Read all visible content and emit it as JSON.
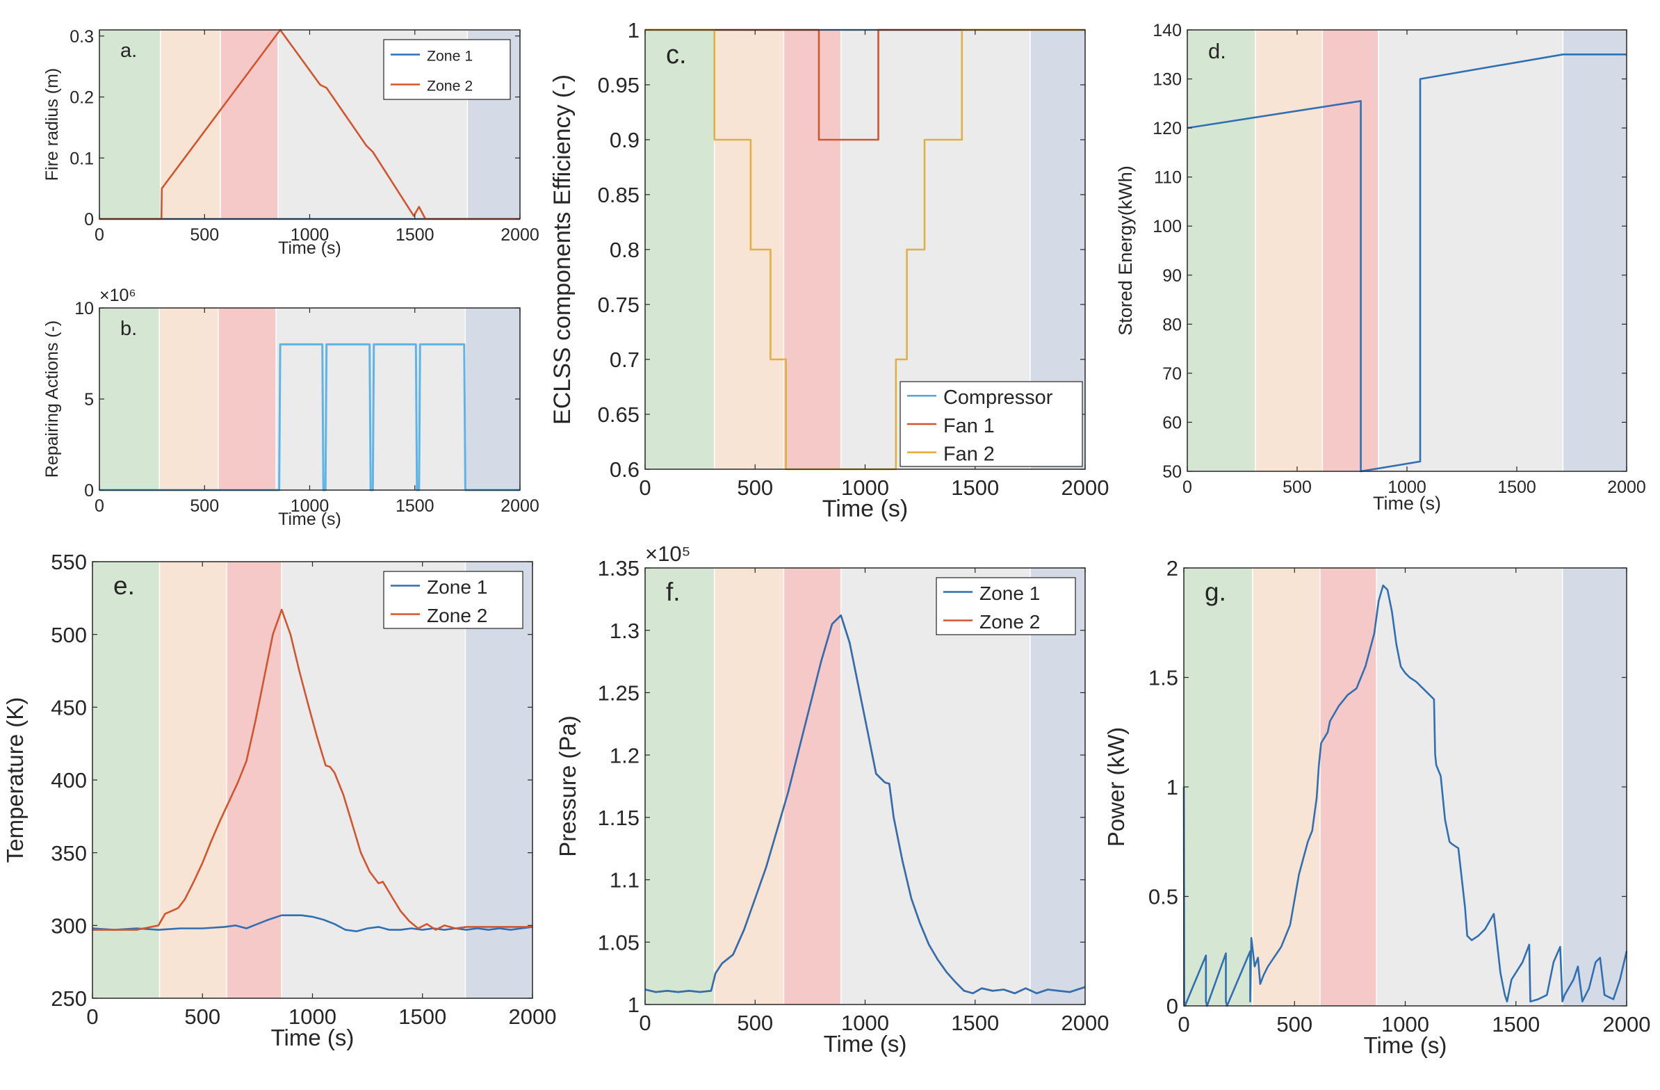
{
  "figure": {
    "phase_colors": [
      "#d5e7d3",
      "#f8e4d4",
      "#f6c9c9",
      "#ebebeb",
      "#d5dbe6"
    ],
    "colors": {
      "zone1": "#2f6fb2",
      "zone2": "#d1552e",
      "compressor": "#5aa8d8",
      "fan1": "#d1552e",
      "fan2": "#e0b13e",
      "repair": "#5fb4e6"
    }
  },
  "chart_data": [
    {
      "id": "a",
      "type": "line",
      "panel_label": "a.",
      "xlabel": "Time (s)",
      "ylabel": "Fire radius (m)",
      "xlim": [
        0,
        2000
      ],
      "ylim": [
        0,
        0.31
      ],
      "xticks": [
        0,
        500,
        1000,
        1500,
        2000
      ],
      "yticks": [
        0,
        0.1,
        0.2,
        0.3
      ],
      "ytick_labels": [
        "0",
        "0.1",
        "0.2",
        "0.3"
      ],
      "exponent": "",
      "legend": {
        "position": "top-right"
      },
      "phases": [
        0,
        290,
        575,
        850,
        1750,
        2000
      ],
      "series": [
        {
          "name": "Zone 1",
          "color": "#2f6fb2",
          "x": [
            0,
            2000
          ],
          "y": [
            0,
            0
          ]
        },
        {
          "name": "Zone 2",
          "color": "#d1552e",
          "x": [
            0,
            295,
            297,
            860,
            1050,
            1080,
            1270,
            1300,
            1495,
            1520,
            1550,
            2000
          ],
          "y": [
            0,
            0,
            0.05,
            0.31,
            0.22,
            0.215,
            0.12,
            0.11,
            0.005,
            0.02,
            0,
            0
          ]
        }
      ]
    },
    {
      "id": "b",
      "type": "line",
      "panel_label": "b.",
      "xlabel": "Time (s)",
      "ylabel": "Repairing Actions (-)",
      "xlim": [
        0,
        2000
      ],
      "ylim": [
        0,
        10
      ],
      "xticks": [
        0,
        500,
        1000,
        1500,
        2000
      ],
      "yticks": [
        0,
        5,
        10
      ],
      "ytick_labels": [
        "0",
        "5",
        "10"
      ],
      "exponent": "×10⁶",
      "legend": null,
      "phases": [
        0,
        285,
        565,
        840,
        1740,
        2000
      ],
      "series": [
        {
          "name": "",
          "color": "#5fb4e6",
          "x": [
            0,
            855,
            860,
            1060,
            1065,
            1075,
            1080,
            1285,
            1290,
            1300,
            1305,
            1505,
            1510,
            1520,
            1525,
            1735,
            1740,
            2000
          ],
          "y": [
            0,
            0,
            8,
            8,
            0,
            0,
            8,
            8,
            0,
            0,
            8,
            8,
            0,
            0,
            8,
            8,
            0,
            0
          ]
        }
      ]
    },
    {
      "id": "c",
      "type": "line",
      "panel_label": "c.",
      "xlabel": "Time (s)",
      "ylabel": "ECLSS components Efficiency (-)",
      "xlim": [
        0,
        2000
      ],
      "ylim": [
        0.6,
        1
      ],
      "xticks": [
        0,
        500,
        1000,
        1500,
        2000
      ],
      "yticks": [
        0.6,
        0.65,
        0.7,
        0.75,
        0.8,
        0.85,
        0.9,
        0.95,
        1
      ],
      "ytick_labels": [
        "0.6",
        "0.65",
        "0.7",
        "0.75",
        "0.8",
        "0.85",
        "0.9",
        "0.95",
        "1"
      ],
      "exponent": "",
      "legend": {
        "position": "bottom-right"
      },
      "phases": [
        0,
        315,
        630,
        890,
        1750,
        2000
      ],
      "series": [
        {
          "name": "Compressor",
          "color": "#5aa8d8",
          "x": [
            0,
            2000
          ],
          "y": [
            1,
            1
          ]
        },
        {
          "name": "Fan 1",
          "color": "#d1552e",
          "x": [
            0,
            790,
            790,
            1060,
            1060,
            2000
          ],
          "y": [
            1,
            1,
            0.9,
            0.9,
            1,
            1
          ]
        },
        {
          "name": "Fan 2",
          "color": "#e0b13e",
          "x": [
            0,
            315,
            315,
            480,
            480,
            570,
            570,
            640,
            640,
            1140,
            1140,
            1190,
            1190,
            1270,
            1270,
            1440,
            1440,
            2000
          ],
          "y": [
            1,
            1,
            0.9,
            0.9,
            0.8,
            0.8,
            0.7,
            0.7,
            0.6,
            0.6,
            0.7,
            0.7,
            0.8,
            0.8,
            0.9,
            0.9,
            1,
            1
          ]
        }
      ]
    },
    {
      "id": "d",
      "type": "line",
      "panel_label": "d.",
      "xlabel": "Time (s)",
      "ylabel": "Stored Energy(kWh)",
      "xlim": [
        0,
        2000
      ],
      "ylim": [
        50,
        140
      ],
      "xticks": [
        0,
        500,
        1000,
        1500,
        2000
      ],
      "yticks": [
        50,
        60,
        70,
        80,
        90,
        100,
        110,
        120,
        130,
        140
      ],
      "ytick_labels": [
        "50",
        "60",
        "70",
        "80",
        "90",
        "100",
        "110",
        "120",
        "130",
        "140"
      ],
      "exponent": "",
      "legend": null,
      "phases": [
        0,
        310,
        615,
        870,
        1710,
        2000
      ],
      "series": [
        {
          "name": "",
          "color": "#2f6fb2",
          "x": [
            0,
            790,
            790,
            1060,
            1060,
            1710,
            2000
          ],
          "y": [
            120,
            125.5,
            50,
            52,
            130,
            135,
            135
          ]
        }
      ]
    },
    {
      "id": "e",
      "type": "line",
      "panel_label": "e.",
      "xlabel": "Time (s)",
      "ylabel": "Temperature (K)",
      "xlim": [
        0,
        2000
      ],
      "ylim": [
        250,
        550
      ],
      "xticks": [
        0,
        500,
        1000,
        1500,
        2000
      ],
      "yticks": [
        250,
        300,
        350,
        400,
        450,
        500,
        550
      ],
      "ytick_labels": [
        "250",
        "300",
        "350",
        "400",
        "450",
        "500",
        "550"
      ],
      "exponent": "",
      "legend": {
        "position": "top-right"
      },
      "phases": [
        0,
        305,
        610,
        860,
        1695,
        2000
      ],
      "series": [
        {
          "name": "Zone 1",
          "color": "#2f6fb2",
          "x": [
            0,
            100,
            200,
            300,
            400,
            500,
            600,
            650,
            700,
            750,
            800,
            860,
            900,
            950,
            1000,
            1050,
            1100,
            1150,
            1200,
            1250,
            1300,
            1350,
            1400,
            1450,
            1500,
            1550,
            1600,
            1650,
            1700,
            1750,
            1800,
            1850,
            1900,
            1950,
            2000
          ],
          "y": [
            298,
            297,
            298,
            297,
            298,
            298,
            299,
            300,
            298,
            301,
            304,
            307,
            307,
            307,
            306,
            304,
            301,
            297,
            296,
            298,
            299,
            297,
            297,
            298,
            297,
            298,
            297,
            298,
            297,
            298,
            297,
            298,
            297,
            298,
            299
          ]
        },
        {
          "name": "Zone 2",
          "color": "#d1552e",
          "x": [
            0,
            100,
            200,
            300,
            330,
            360,
            390,
            420,
            460,
            500,
            540,
            580,
            620,
            660,
            700,
            740,
            780,
            820,
            860,
            900,
            940,
            980,
            1020,
            1060,
            1080,
            1100,
            1140,
            1180,
            1220,
            1260,
            1300,
            1320,
            1360,
            1400,
            1440,
            1480,
            1520,
            1560,
            1600,
            1650,
            1700,
            1800,
            1900,
            2000
          ],
          "y": [
            297,
            297,
            297,
            300,
            308,
            310,
            312,
            318,
            330,
            343,
            358,
            372,
            385,
            398,
            413,
            440,
            470,
            500,
            517,
            500,
            475,
            452,
            430,
            410,
            409,
            405,
            390,
            370,
            350,
            337,
            329,
            330,
            320,
            310,
            303,
            298,
            301,
            297,
            300,
            298,
            299,
            299,
            299,
            299
          ]
        }
      ]
    },
    {
      "id": "f",
      "type": "line",
      "panel_label": "f.",
      "xlabel": "Time (s)",
      "ylabel": "Pressure (Pa)",
      "xlim": [
        0,
        2000
      ],
      "ylim": [
        1,
        1.35
      ],
      "xticks": [
        0,
        500,
        1000,
        1500,
        2000
      ],
      "yticks": [
        1,
        1.05,
        1.1,
        1.15,
        1.2,
        1.25,
        1.3,
        1.35
      ],
      "ytick_labels": [
        "1",
        "1.05",
        "1.1",
        "1.15",
        "1.2",
        "1.25",
        "1.3",
        "1.35"
      ],
      "exponent": "×10⁵",
      "legend": {
        "position": "top-right"
      },
      "phases": [
        0,
        315,
        630,
        890,
        1750,
        2000
      ],
      "series": [
        {
          "name": "Zone 2",
          "color": "#d1552e",
          "x": [
            0,
            50,
            100,
            150,
            200,
            250,
            300,
            320,
            350,
            400,
            450,
            500,
            550,
            600,
            650,
            700,
            750,
            800,
            850,
            890,
            930,
            970,
            1010,
            1050,
            1090,
            1110,
            1130,
            1170,
            1210,
            1250,
            1290,
            1330,
            1370,
            1410,
            1450,
            1490,
            1530,
            1580,
            1630,
            1680,
            1730,
            1780,
            1830,
            1880,
            1930,
            2000
          ],
          "y": [
            1.012,
            1.01,
            1.011,
            1.01,
            1.011,
            1.01,
            1.011,
            1.025,
            1.033,
            1.04,
            1.06,
            1.085,
            1.11,
            1.14,
            1.17,
            1.205,
            1.24,
            1.275,
            1.305,
            1.312,
            1.29,
            1.255,
            1.22,
            1.185,
            1.178,
            1.177,
            1.15,
            1.115,
            1.085,
            1.065,
            1.048,
            1.036,
            1.026,
            1.018,
            1.011,
            1.009,
            1.013,
            1.011,
            1.012,
            1.009,
            1.013,
            1.009,
            1.012,
            1.011,
            1.01,
            1.014
          ]
        },
        {
          "name": "Zone 1",
          "color": "#2f6fb2",
          "x": [
            0,
            50,
            100,
            150,
            200,
            250,
            300,
            320,
            350,
            400,
            450,
            500,
            550,
            600,
            650,
            700,
            750,
            800,
            850,
            890,
            930,
            970,
            1010,
            1050,
            1090,
            1110,
            1130,
            1170,
            1210,
            1250,
            1290,
            1330,
            1370,
            1410,
            1450,
            1490,
            1530,
            1580,
            1630,
            1680,
            1730,
            1780,
            1830,
            1880,
            1930,
            2000
          ],
          "y": [
            1.012,
            1.01,
            1.011,
            1.01,
            1.011,
            1.01,
            1.011,
            1.025,
            1.033,
            1.04,
            1.06,
            1.085,
            1.11,
            1.14,
            1.17,
            1.205,
            1.24,
            1.275,
            1.305,
            1.312,
            1.29,
            1.255,
            1.22,
            1.185,
            1.178,
            1.177,
            1.15,
            1.115,
            1.085,
            1.065,
            1.048,
            1.036,
            1.026,
            1.018,
            1.011,
            1.009,
            1.013,
            1.011,
            1.012,
            1.009,
            1.013,
            1.009,
            1.012,
            1.011,
            1.01,
            1.014
          ]
        }
      ]
    },
    {
      "id": "g",
      "type": "line",
      "panel_label": "g.",
      "xlabel": "Time (s)",
      "ylabel": "Power (kW)",
      "xlim": [
        0,
        2000
      ],
      "ylim": [
        0,
        2
      ],
      "xticks": [
        0,
        500,
        1000,
        1500,
        2000
      ],
      "yticks": [
        0,
        0.5,
        1,
        1.5,
        2
      ],
      "ytick_labels": [
        "0",
        "0.5",
        "1",
        "1.5",
        "2"
      ],
      "exponent": "",
      "legend": null,
      "phases": [
        0,
        310,
        615,
        870,
        1710,
        2000
      ],
      "series": [
        {
          "name": "",
          "color": "#2f6fb2",
          "x": [
            0,
            2,
            5,
            100,
            100,
            105,
            190,
            190,
            195,
            300,
            300,
            305,
            320,
            335,
            345,
            360,
            380,
            400,
            440,
            480,
            520,
            560,
            580,
            600,
            610,
            620,
            650,
            660,
            700,
            740,
            780,
            820,
            860,
            880,
            900,
            920,
            940,
            960,
            980,
            1000,
            1020,
            1050,
            1080,
            1110,
            1130,
            1135,
            1140,
            1160,
            1180,
            1190,
            1200,
            1210,
            1240,
            1270,
            1280,
            1300,
            1330,
            1360,
            1400,
            1430,
            1440,
            1450,
            1460,
            1480,
            1530,
            1560,
            1565,
            1600,
            1640,
            1670,
            1700,
            1710,
            1720,
            1760,
            1780,
            1800,
            1830,
            1860,
            1880,
            1900,
            1940,
            1970,
            2000
          ],
          "y": [
            1.0,
            0.02,
            0,
            0.23,
            0.02,
            0,
            0.24,
            0.02,
            0,
            0.25,
            0.02,
            0.31,
            0.18,
            0.22,
            0.1,
            0.14,
            0.18,
            0.21,
            0.27,
            0.37,
            0.6,
            0.75,
            0.8,
            0.95,
            1.1,
            1.2,
            1.25,
            1.3,
            1.37,
            1.42,
            1.45,
            1.55,
            1.7,
            1.85,
            1.92,
            1.9,
            1.8,
            1.65,
            1.55,
            1.52,
            1.5,
            1.48,
            1.45,
            1.42,
            1.4,
            1.15,
            1.1,
            1.05,
            0.85,
            0.8,
            0.75,
            0.74,
            0.72,
            0.45,
            0.32,
            0.3,
            0.32,
            0.35,
            0.42,
            0.15,
            0.1,
            0.05,
            0.02,
            0.12,
            0.2,
            0.28,
            0.02,
            0.03,
            0.05,
            0.2,
            0.27,
            0.02,
            0.05,
            0.12,
            0.18,
            0.02,
            0.08,
            0.2,
            0.22,
            0.05,
            0.03,
            0.12,
            0.25
          ]
        }
      ]
    }
  ]
}
